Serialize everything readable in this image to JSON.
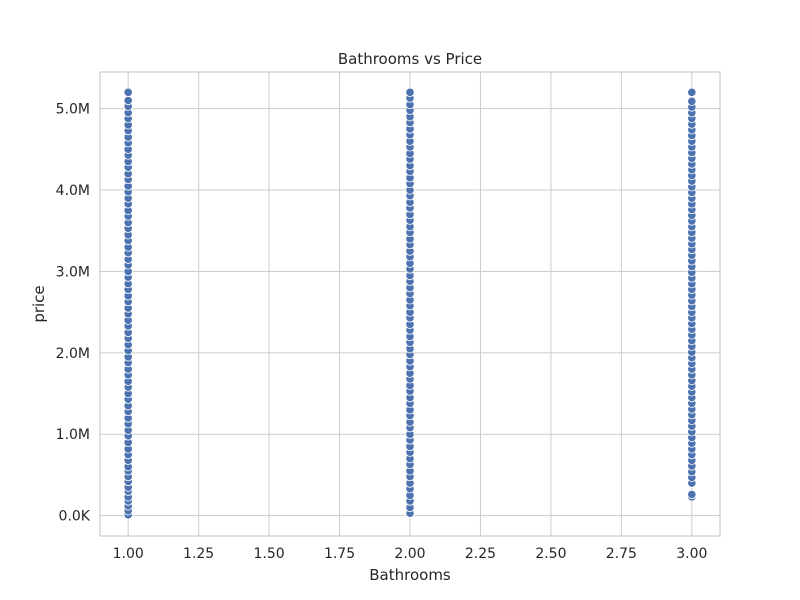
{
  "chart_data": {
    "type": "scatter",
    "title": "Bathrooms vs Price",
    "xlabel": "Bathrooms",
    "ylabel": "price",
    "xlim": [
      0.9,
      3.1
    ],
    "ylim": [
      -250000,
      5450000
    ],
    "x_ticks": [
      1.0,
      1.25,
      1.5,
      1.75,
      2.0,
      2.25,
      2.5,
      2.75,
      3.0
    ],
    "x_tick_labels": [
      "1.00",
      "1.25",
      "1.50",
      "1.75",
      "2.00",
      "2.25",
      "2.50",
      "2.75",
      "3.00"
    ],
    "y_ticks": [
      0,
      1000000,
      2000000,
      3000000,
      4000000,
      5000000
    ],
    "y_tick_labels": [
      "0.0K",
      "1.0M",
      "2.0M",
      "3.0M",
      "4.0M",
      "5.0M"
    ],
    "grid": true,
    "point_color": "#4c72b0",
    "series": [
      {
        "points": [
          {
            "x": 1,
            "y": 10000
          },
          {
            "x": 1,
            "y": 60000
          },
          {
            "x": 1,
            "y": 120000
          },
          {
            "x": 1,
            "y": 180000
          },
          {
            "x": 1,
            "y": 230000
          },
          {
            "x": 1,
            "y": 300000
          },
          {
            "x": 1,
            "y": 350000
          },
          {
            "x": 1,
            "y": 420000
          },
          {
            "x": 1,
            "y": 480000
          },
          {
            "x": 1,
            "y": 550000
          },
          {
            "x": 1,
            "y": 600000
          },
          {
            "x": 1,
            "y": 680000
          },
          {
            "x": 1,
            "y": 750000
          },
          {
            "x": 1,
            "y": 820000
          },
          {
            "x": 1,
            "y": 900000
          },
          {
            "x": 1,
            "y": 980000
          },
          {
            "x": 1,
            "y": 1050000
          },
          {
            "x": 1,
            "y": 1130000
          },
          {
            "x": 1,
            "y": 1200000
          },
          {
            "x": 1,
            "y": 1280000
          },
          {
            "x": 1,
            "y": 1350000
          },
          {
            "x": 1,
            "y": 1430000
          },
          {
            "x": 1,
            "y": 1500000
          },
          {
            "x": 1,
            "y": 1580000
          },
          {
            "x": 1,
            "y": 1650000
          },
          {
            "x": 1,
            "y": 1730000
          },
          {
            "x": 1,
            "y": 1800000
          },
          {
            "x": 1,
            "y": 1880000
          },
          {
            "x": 1,
            "y": 1950000
          },
          {
            "x": 1,
            "y": 2030000
          },
          {
            "x": 1,
            "y": 2100000
          },
          {
            "x": 1,
            "y": 2180000
          },
          {
            "x": 1,
            "y": 2250000
          },
          {
            "x": 1,
            "y": 2330000
          },
          {
            "x": 1,
            "y": 2400000
          },
          {
            "x": 1,
            "y": 2480000
          },
          {
            "x": 1,
            "y": 2550000
          },
          {
            "x": 1,
            "y": 2630000
          },
          {
            "x": 1,
            "y": 2700000
          },
          {
            "x": 1,
            "y": 2780000
          },
          {
            "x": 1,
            "y": 2850000
          },
          {
            "x": 1,
            "y": 2930000
          },
          {
            "x": 1,
            "y": 3000000
          },
          {
            "x": 1,
            "y": 3080000
          },
          {
            "x": 1,
            "y": 3150000
          },
          {
            "x": 1,
            "y": 3230000
          },
          {
            "x": 1,
            "y": 3300000
          },
          {
            "x": 1,
            "y": 3380000
          },
          {
            "x": 1,
            "y": 3450000
          },
          {
            "x": 1,
            "y": 3530000
          },
          {
            "x": 1,
            "y": 3600000
          },
          {
            "x": 1,
            "y": 3680000
          },
          {
            "x": 1,
            "y": 3750000
          },
          {
            "x": 1,
            "y": 3830000
          },
          {
            "x": 1,
            "y": 3900000
          },
          {
            "x": 1,
            "y": 3980000
          },
          {
            "x": 1,
            "y": 4050000
          },
          {
            "x": 1,
            "y": 4130000
          },
          {
            "x": 1,
            "y": 4200000
          },
          {
            "x": 1,
            "y": 4280000
          },
          {
            "x": 1,
            "y": 4350000
          },
          {
            "x": 1,
            "y": 4430000
          },
          {
            "x": 1,
            "y": 4500000
          },
          {
            "x": 1,
            "y": 4580000
          },
          {
            "x": 1,
            "y": 4650000
          },
          {
            "x": 1,
            "y": 4730000
          },
          {
            "x": 1,
            "y": 4800000
          },
          {
            "x": 1,
            "y": 4880000
          },
          {
            "x": 1,
            "y": 4950000
          },
          {
            "x": 1,
            "y": 5030000
          },
          {
            "x": 1,
            "y": 5100000
          },
          {
            "x": 1,
            "y": 5200000
          },
          {
            "x": 2,
            "y": 30000
          },
          {
            "x": 2,
            "y": 100000
          },
          {
            "x": 2,
            "y": 180000
          },
          {
            "x": 2,
            "y": 250000
          },
          {
            "x": 2,
            "y": 330000
          },
          {
            "x": 2,
            "y": 400000
          },
          {
            "x": 2,
            "y": 480000
          },
          {
            "x": 2,
            "y": 550000
          },
          {
            "x": 2,
            "y": 630000
          },
          {
            "x": 2,
            "y": 700000
          },
          {
            "x": 2,
            "y": 780000
          },
          {
            "x": 2,
            "y": 850000
          },
          {
            "x": 2,
            "y": 930000
          },
          {
            "x": 2,
            "y": 1000000
          },
          {
            "x": 2,
            "y": 1080000
          },
          {
            "x": 2,
            "y": 1150000
          },
          {
            "x": 2,
            "y": 1230000
          },
          {
            "x": 2,
            "y": 1300000
          },
          {
            "x": 2,
            "y": 1380000
          },
          {
            "x": 2,
            "y": 1450000
          },
          {
            "x": 2,
            "y": 1530000
          },
          {
            "x": 2,
            "y": 1600000
          },
          {
            "x": 2,
            "y": 1680000
          },
          {
            "x": 2,
            "y": 1750000
          },
          {
            "x": 2,
            "y": 1830000
          },
          {
            "x": 2,
            "y": 1900000
          },
          {
            "x": 2,
            "y": 1980000
          },
          {
            "x": 2,
            "y": 2050000
          },
          {
            "x": 2,
            "y": 2130000
          },
          {
            "x": 2,
            "y": 2200000
          },
          {
            "x": 2,
            "y": 2280000
          },
          {
            "x": 2,
            "y": 2350000
          },
          {
            "x": 2,
            "y": 2430000
          },
          {
            "x": 2,
            "y": 2500000
          },
          {
            "x": 2,
            "y": 2580000
          },
          {
            "x": 2,
            "y": 2650000
          },
          {
            "x": 2,
            "y": 2730000
          },
          {
            "x": 2,
            "y": 2800000
          },
          {
            "x": 2,
            "y": 2880000
          },
          {
            "x": 2,
            "y": 2950000
          },
          {
            "x": 2,
            "y": 3030000
          },
          {
            "x": 2,
            "y": 3100000
          },
          {
            "x": 2,
            "y": 3180000
          },
          {
            "x": 2,
            "y": 3250000
          },
          {
            "x": 2,
            "y": 3330000
          },
          {
            "x": 2,
            "y": 3400000
          },
          {
            "x": 2,
            "y": 3480000
          },
          {
            "x": 2,
            "y": 3550000
          },
          {
            "x": 2,
            "y": 3630000
          },
          {
            "x": 2,
            "y": 3700000
          },
          {
            "x": 2,
            "y": 3780000
          },
          {
            "x": 2,
            "y": 3850000
          },
          {
            "x": 2,
            "y": 3930000
          },
          {
            "x": 2,
            "y": 4000000
          },
          {
            "x": 2,
            "y": 4080000
          },
          {
            "x": 2,
            "y": 4150000
          },
          {
            "x": 2,
            "y": 4230000
          },
          {
            "x": 2,
            "y": 4300000
          },
          {
            "x": 2,
            "y": 4380000
          },
          {
            "x": 2,
            "y": 4450000
          },
          {
            "x": 2,
            "y": 4530000
          },
          {
            "x": 2,
            "y": 4600000
          },
          {
            "x": 2,
            "y": 4680000
          },
          {
            "x": 2,
            "y": 4750000
          },
          {
            "x": 2,
            "y": 4830000
          },
          {
            "x": 2,
            "y": 4900000
          },
          {
            "x": 2,
            "y": 4980000
          },
          {
            "x": 2,
            "y": 5050000
          },
          {
            "x": 2,
            "y": 5130000
          },
          {
            "x": 2,
            "y": 5200000
          },
          {
            "x": 3,
            "y": 230000
          },
          {
            "x": 3,
            "y": 260000
          },
          {
            "x": 3,
            "y": 400000
          },
          {
            "x": 3,
            "y": 470000
          },
          {
            "x": 3,
            "y": 540000
          },
          {
            "x": 3,
            "y": 610000
          },
          {
            "x": 3,
            "y": 680000
          },
          {
            "x": 3,
            "y": 750000
          },
          {
            "x": 3,
            "y": 820000
          },
          {
            "x": 3,
            "y": 890000
          },
          {
            "x": 3,
            "y": 960000
          },
          {
            "x": 3,
            "y": 1030000
          },
          {
            "x": 3,
            "y": 1100000
          },
          {
            "x": 3,
            "y": 1170000
          },
          {
            "x": 3,
            "y": 1240000
          },
          {
            "x": 3,
            "y": 1310000
          },
          {
            "x": 3,
            "y": 1380000
          },
          {
            "x": 3,
            "y": 1450000
          },
          {
            "x": 3,
            "y": 1520000
          },
          {
            "x": 3,
            "y": 1590000
          },
          {
            "x": 3,
            "y": 1660000
          },
          {
            "x": 3,
            "y": 1730000
          },
          {
            "x": 3,
            "y": 1800000
          },
          {
            "x": 3,
            "y": 1870000
          },
          {
            "x": 3,
            "y": 1940000
          },
          {
            "x": 3,
            "y": 2010000
          },
          {
            "x": 3,
            "y": 2080000
          },
          {
            "x": 3,
            "y": 2150000
          },
          {
            "x": 3,
            "y": 2220000
          },
          {
            "x": 3,
            "y": 2290000
          },
          {
            "x": 3,
            "y": 2360000
          },
          {
            "x": 3,
            "y": 2430000
          },
          {
            "x": 3,
            "y": 2500000
          },
          {
            "x": 3,
            "y": 2570000
          },
          {
            "x": 3,
            "y": 2640000
          },
          {
            "x": 3,
            "y": 2710000
          },
          {
            "x": 3,
            "y": 2780000
          },
          {
            "x": 3,
            "y": 2850000
          },
          {
            "x": 3,
            "y": 2920000
          },
          {
            "x": 3,
            "y": 2990000
          },
          {
            "x": 3,
            "y": 3060000
          },
          {
            "x": 3,
            "y": 3130000
          },
          {
            "x": 3,
            "y": 3200000
          },
          {
            "x": 3,
            "y": 3270000
          },
          {
            "x": 3,
            "y": 3340000
          },
          {
            "x": 3,
            "y": 3410000
          },
          {
            "x": 3,
            "y": 3480000
          },
          {
            "x": 3,
            "y": 3550000
          },
          {
            "x": 3,
            "y": 3620000
          },
          {
            "x": 3,
            "y": 3690000
          },
          {
            "x": 3,
            "y": 3760000
          },
          {
            "x": 3,
            "y": 3830000
          },
          {
            "x": 3,
            "y": 3900000
          },
          {
            "x": 3,
            "y": 3970000
          },
          {
            "x": 3,
            "y": 4040000
          },
          {
            "x": 3,
            "y": 4110000
          },
          {
            "x": 3,
            "y": 4180000
          },
          {
            "x": 3,
            "y": 4250000
          },
          {
            "x": 3,
            "y": 4320000
          },
          {
            "x": 3,
            "y": 4390000
          },
          {
            "x": 3,
            "y": 4460000
          },
          {
            "x": 3,
            "y": 4530000
          },
          {
            "x": 3,
            "y": 4600000
          },
          {
            "x": 3,
            "y": 4670000
          },
          {
            "x": 3,
            "y": 4740000
          },
          {
            "x": 3,
            "y": 4810000
          },
          {
            "x": 3,
            "y": 4880000
          },
          {
            "x": 3,
            "y": 4950000
          },
          {
            "x": 3,
            "y": 5020000
          },
          {
            "x": 3,
            "y": 5090000
          },
          {
            "x": 3,
            "y": 5200000
          }
        ]
      }
    ]
  }
}
